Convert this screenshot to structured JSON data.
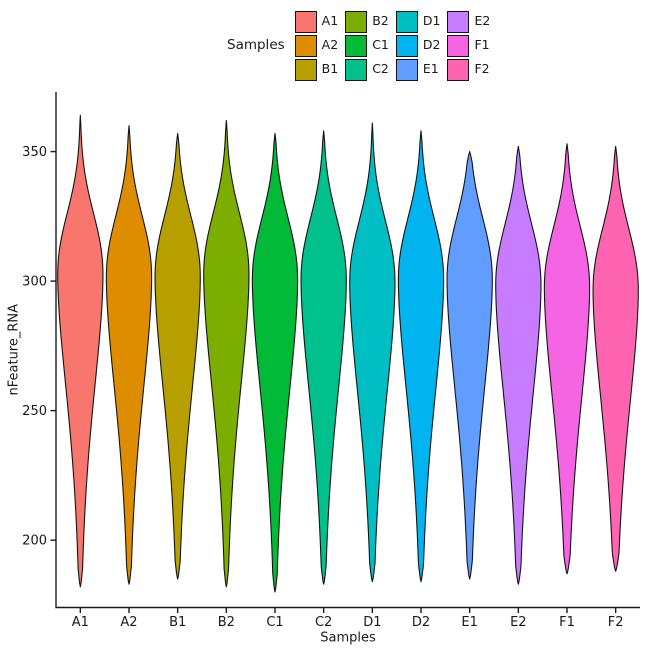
{
  "legend": {
    "title": "Samples",
    "entries": [
      {
        "label": "A1",
        "color": "#F8766D"
      },
      {
        "label": "A2",
        "color": "#DE8C00"
      },
      {
        "label": "B1",
        "color": "#B79F00"
      },
      {
        "label": "B2",
        "color": "#7CAE00"
      },
      {
        "label": "C1",
        "color": "#00BA38"
      },
      {
        "label": "C2",
        "color": "#00C08B"
      },
      {
        "label": "D1",
        "color": "#00BFC4"
      },
      {
        "label": "D2",
        "color": "#00B4F0"
      },
      {
        "label": "E1",
        "color": "#619CFF"
      },
      {
        "label": "E2",
        "color": "#C77CFF"
      },
      {
        "label": "F1",
        "color": "#F564E3"
      },
      {
        "label": "F2",
        "color": "#FF64B0"
      }
    ]
  },
  "chart_data": {
    "type": "violin",
    "title": "",
    "xlabel": "Samples",
    "ylabel": "nFeature_RNA",
    "categories": [
      "A1",
      "A2",
      "B1",
      "B2",
      "C1",
      "C2",
      "D1",
      "D2",
      "E1",
      "E2",
      "F1",
      "F2"
    ],
    "y_ticks": [
      200,
      250,
      300,
      350
    ],
    "ylim": [
      174,
      373
    ],
    "grid": "off",
    "legend_position": "top",
    "series": [
      {
        "name": "A1",
        "color": "#F8766D",
        "min": 182,
        "max": 364,
        "mode": 302
      },
      {
        "name": "A2",
        "color": "#DE8C00",
        "min": 183,
        "max": 360,
        "mode": 301
      },
      {
        "name": "B1",
        "color": "#B79F00",
        "min": 185,
        "max": 357,
        "mode": 301
      },
      {
        "name": "B2",
        "color": "#7CAE00",
        "min": 182,
        "max": 362,
        "mode": 302
      },
      {
        "name": "C1",
        "color": "#00BA38",
        "min": 180,
        "max": 357,
        "mode": 300
      },
      {
        "name": "C2",
        "color": "#00C08B",
        "min": 183,
        "max": 358,
        "mode": 300
      },
      {
        "name": "D1",
        "color": "#00BFC4",
        "min": 184,
        "max": 361,
        "mode": 299
      },
      {
        "name": "D2",
        "color": "#00B4F0",
        "min": 184,
        "max": 358,
        "mode": 300
      },
      {
        "name": "E1",
        "color": "#619CFF",
        "min": 185,
        "max": 350,
        "mode": 300
      },
      {
        "name": "E2",
        "color": "#C77CFF",
        "min": 183,
        "max": 352,
        "mode": 298
      },
      {
        "name": "F1",
        "color": "#F564E3",
        "min": 187,
        "max": 353,
        "mode": 297
      },
      {
        "name": "F2",
        "color": "#FF64B0",
        "min": 188,
        "max": 352,
        "mode": 296
      }
    ],
    "shape_profile": {
      "upper_scale": 32,
      "upper_power": 2.2,
      "lower_scale": 69,
      "lower_power": 1.7,
      "max_halfwidth_fraction": 0.93,
      "top_taper_units": 4,
      "bottom_taper_units": 7
    },
    "style": {
      "axis_color": "#1a1a1a",
      "violin_stroke": "#141414",
      "tick_font_size": 13,
      "axis_title_font_size": 13
    }
  }
}
